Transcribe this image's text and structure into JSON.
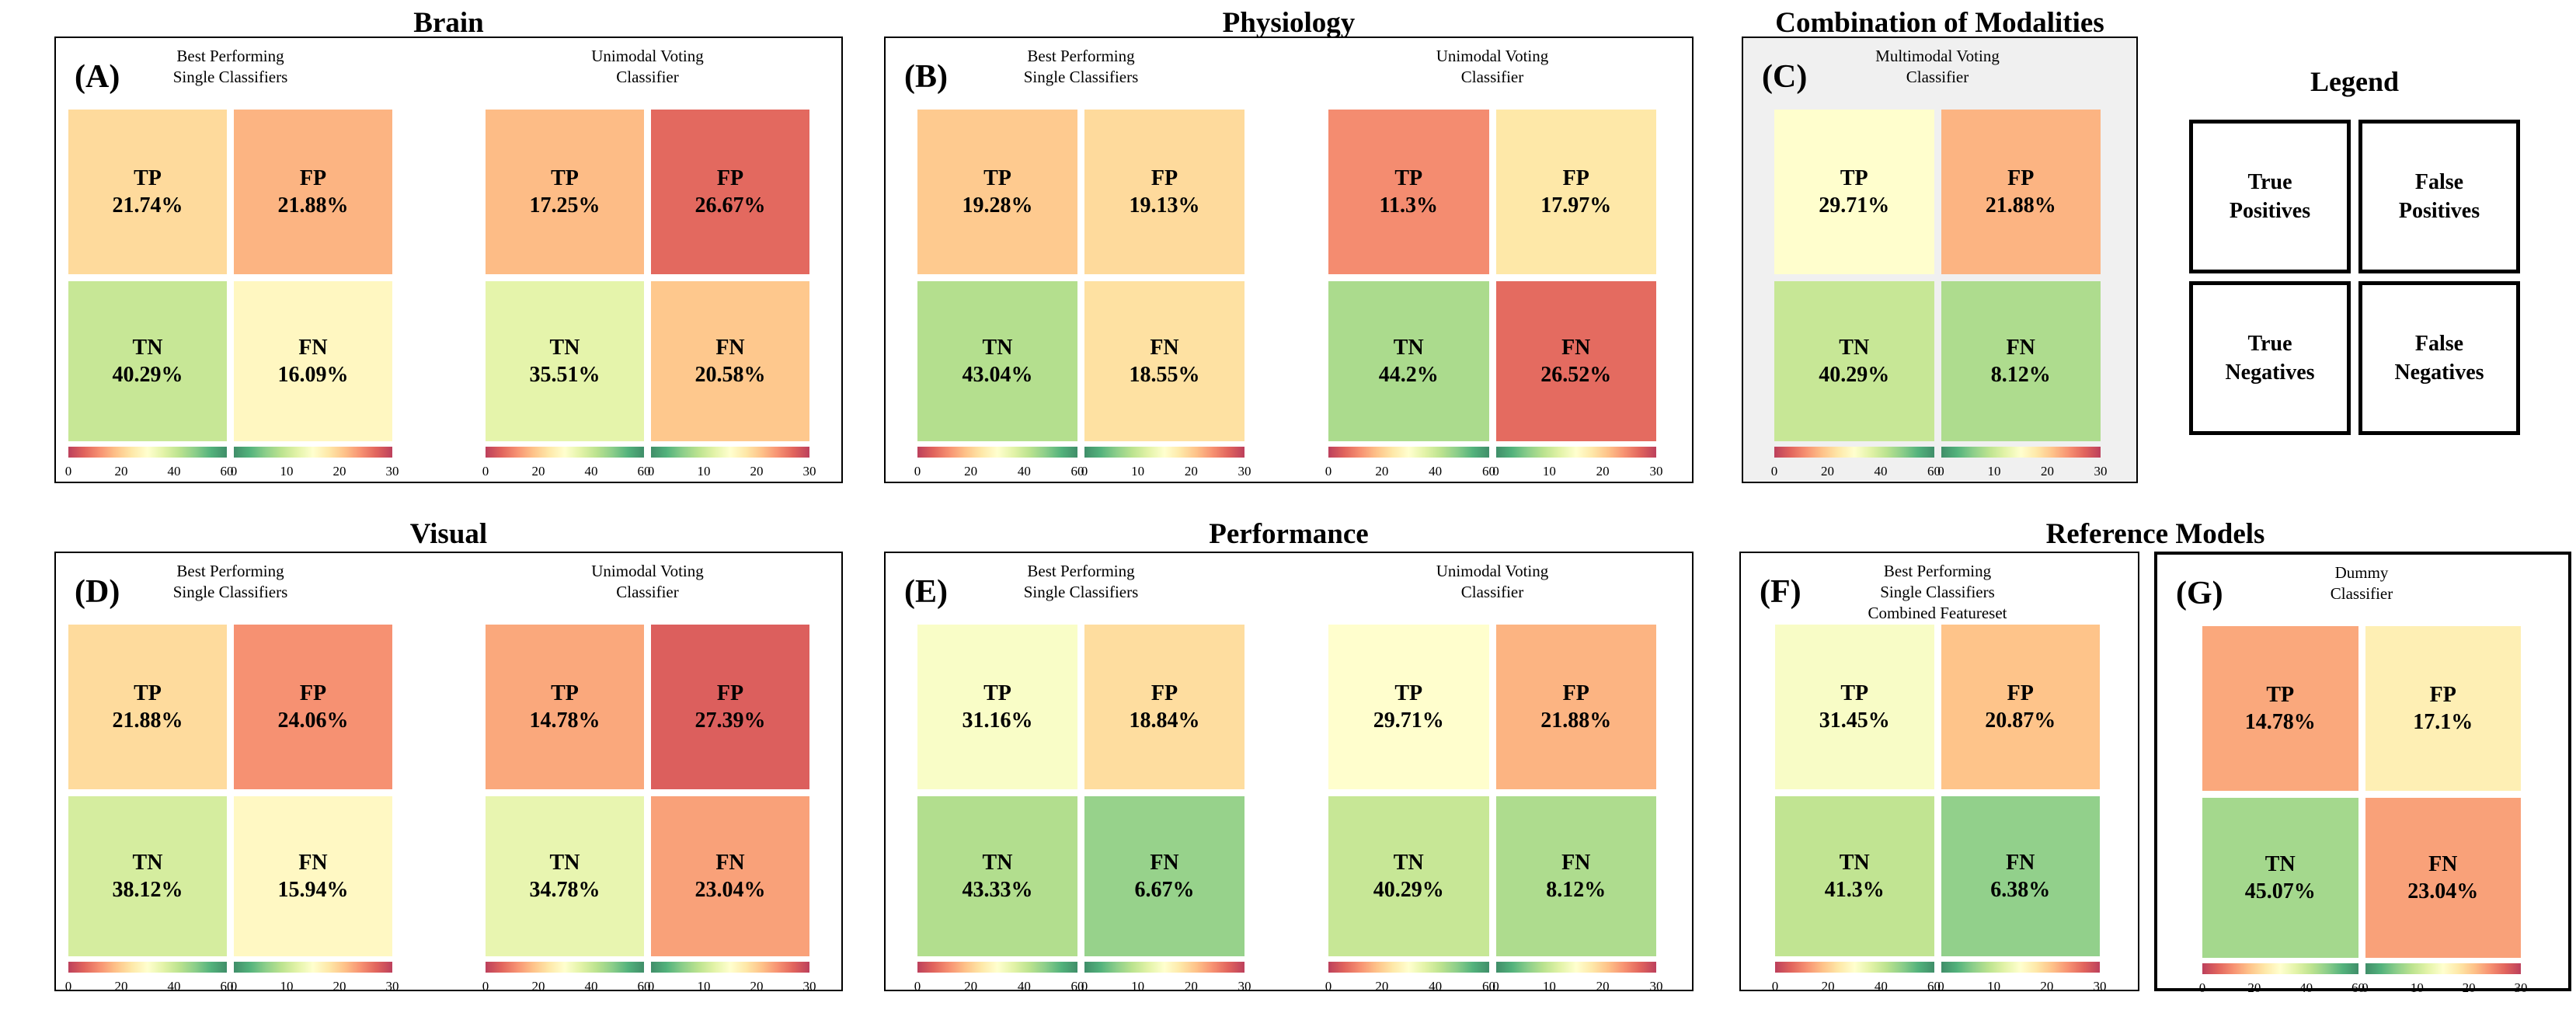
{
  "chart_data": {
    "type": "heatmap",
    "figure_kind": "confusion-matrix-comparison",
    "section_titles": [
      {
        "text": "Brain",
        "panels": [
          "A"
        ]
      },
      {
        "text": "Physiology",
        "panels": [
          "B"
        ]
      },
      {
        "text": "Combination of Modalities",
        "panels": [
          "C"
        ]
      },
      {
        "text": "Visual",
        "panels": [
          "D"
        ]
      },
      {
        "text": "Performance",
        "panels": [
          "E"
        ]
      },
      {
        "text": "Reference Models",
        "panels": [
          "F",
          "G"
        ]
      }
    ],
    "colorbars": {
      "tp_tn": {
        "range": [
          0,
          60
        ],
        "ticks": [
          "0",
          "20",
          "40",
          "60"
        ],
        "direction": "red-to-green"
      },
      "fp_fn": {
        "range": [
          0,
          30
        ],
        "ticks": [
          "0",
          "10",
          "20",
          "30"
        ],
        "direction": "green-to-red"
      }
    },
    "colors": {
      "rdylgn_anchors": [
        "#a50026",
        "#d73027",
        "#f46d43",
        "#fdae61",
        "#fee08b",
        "#ffffbf",
        "#d9ef8b",
        "#a6d96a",
        "#66bd63",
        "#1a9850",
        "#006837"
      ],
      "cell_alpha_over_white": 0.75,
      "colorbar_stops_blended": [
        "#bc405c",
        "#e1645d",
        "#f79272",
        "#fec289",
        "#fee8a8",
        "#ffffcf",
        "#e3f3a8",
        "#bce38f",
        "#8cce8a",
        "#53b27c",
        "#408e69"
      ],
      "panel_c_bg": "#f0f0f0",
      "border_color": "#000000"
    },
    "panels": [
      {
        "id": "A",
        "label": "(A)",
        "matrices": [
          {
            "subtitle": "Best Performing\nSingle Classifiers",
            "cells": [
              {
                "name": "TP",
                "value": 21.74,
                "pct": "21.74%"
              },
              {
                "name": "FP",
                "value": 21.88,
                "pct": "21.88%"
              },
              {
                "name": "TN",
                "value": 40.29,
                "pct": "40.29%"
              },
              {
                "name": "FN",
                "value": 16.09,
                "pct": "16.09%"
              }
            ]
          },
          {
            "subtitle": "Unimodal Voting\nClassifier",
            "cells": [
              {
                "name": "TP",
                "value": 17.25,
                "pct": "17.25%"
              },
              {
                "name": "FP",
                "value": 26.67,
                "pct": "26.67%"
              },
              {
                "name": "TN",
                "value": 35.51,
                "pct": "35.51%"
              },
              {
                "name": "FN",
                "value": 20.58,
                "pct": "20.58%"
              }
            ]
          }
        ]
      },
      {
        "id": "B",
        "label": "(B)",
        "matrices": [
          {
            "subtitle": "Best Performing\nSingle Classifiers",
            "cells": [
              {
                "name": "TP",
                "value": 19.28,
                "pct": "19.28%"
              },
              {
                "name": "FP",
                "value": 19.13,
                "pct": "19.13%"
              },
              {
                "name": "TN",
                "value": 43.04,
                "pct": "43.04%"
              },
              {
                "name": "FN",
                "value": 18.55,
                "pct": "18.55%"
              }
            ]
          },
          {
            "subtitle": "Unimodal Voting\nClassifier",
            "cells": [
              {
                "name": "TP",
                "value": 11.3,
                "pct": "11.3%"
              },
              {
                "name": "FP",
                "value": 17.97,
                "pct": "17.97%"
              },
              {
                "name": "TN",
                "value": 44.2,
                "pct": "44.2%"
              },
              {
                "name": "FN",
                "value": 26.52,
                "pct": "26.52%"
              }
            ]
          }
        ]
      },
      {
        "id": "C",
        "label": "(C)",
        "matrices": [
          {
            "subtitle": "Multimodal Voting\nClassifier",
            "cells": [
              {
                "name": "TP",
                "value": 29.71,
                "pct": "29.71%"
              },
              {
                "name": "FP",
                "value": 21.88,
                "pct": "21.88%"
              },
              {
                "name": "TN",
                "value": 40.29,
                "pct": "40.29%"
              },
              {
                "name": "FN",
                "value": 8.12,
                "pct": "8.12%"
              }
            ]
          }
        ]
      },
      {
        "id": "D",
        "label": "(D)",
        "matrices": [
          {
            "subtitle": "Best Performing\nSingle Classifiers",
            "cells": [
              {
                "name": "TP",
                "value": 21.88,
                "pct": "21.88%"
              },
              {
                "name": "FP",
                "value": 24.06,
                "pct": "24.06%"
              },
              {
                "name": "TN",
                "value": 38.12,
                "pct": "38.12%"
              },
              {
                "name": "FN",
                "value": 15.94,
                "pct": "15.94%"
              }
            ]
          },
          {
            "subtitle": "Unimodal Voting\nClassifier",
            "cells": [
              {
                "name": "TP",
                "value": 14.78,
                "pct": "14.78%"
              },
              {
                "name": "FP",
                "value": 27.39,
                "pct": "27.39%"
              },
              {
                "name": "TN",
                "value": 34.78,
                "pct": "34.78%"
              },
              {
                "name": "FN",
                "value": 23.04,
                "pct": "23.04%"
              }
            ]
          }
        ]
      },
      {
        "id": "E",
        "label": "(E)",
        "matrices": [
          {
            "subtitle": "Best Performing\nSingle Classifiers",
            "cells": [
              {
                "name": "TP",
                "value": 31.16,
                "pct": "31.16%"
              },
              {
                "name": "FP",
                "value": 18.84,
                "pct": "18.84%"
              },
              {
                "name": "TN",
                "value": 43.33,
                "pct": "43.33%"
              },
              {
                "name": "FN",
                "value": 6.67,
                "pct": "6.67%"
              }
            ]
          },
          {
            "subtitle": "Unimodal Voting\nClassifier",
            "cells": [
              {
                "name": "TP",
                "value": 29.71,
                "pct": "29.71%"
              },
              {
                "name": "FP",
                "value": 21.88,
                "pct": "21.88%"
              },
              {
                "name": "TN",
                "value": 40.29,
                "pct": "40.29%"
              },
              {
                "name": "FN",
                "value": 8.12,
                "pct": "8.12%"
              }
            ]
          }
        ]
      },
      {
        "id": "F",
        "label": "(F)",
        "matrices": [
          {
            "subtitle": "Best Performing\nSingle Classifiers\nCombined Featureset",
            "cells": [
              {
                "name": "TP",
                "value": 31.45,
                "pct": "31.45%"
              },
              {
                "name": "FP",
                "value": 20.87,
                "pct": "20.87%"
              },
              {
                "name": "TN",
                "value": 41.3,
                "pct": "41.3%"
              },
              {
                "name": "FN",
                "value": 6.38,
                "pct": "6.38%"
              }
            ]
          }
        ]
      },
      {
        "id": "G",
        "label": "(G)",
        "matrices": [
          {
            "subtitle": "Dummy\nClassifier",
            "cells": [
              {
                "name": "TP",
                "value": 14.78,
                "pct": "14.78%"
              },
              {
                "name": "FP",
                "value": 17.1,
                "pct": "17.1%"
              },
              {
                "name": "TN",
                "value": 45.07,
                "pct": "45.07%"
              },
              {
                "name": "FN",
                "value": 23.04,
                "pct": "23.04%"
              }
            ]
          }
        ]
      }
    ]
  },
  "legend": {
    "title": "Legend",
    "items": [
      "True\nPositives",
      "False\nPositives",
      "True\nNegatives",
      "False\nNegatives"
    ]
  }
}
